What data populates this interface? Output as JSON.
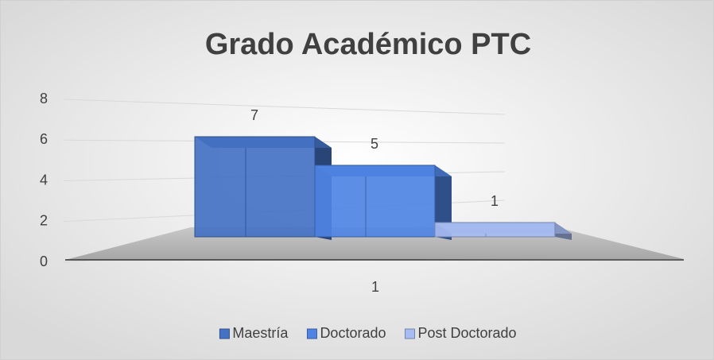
{
  "chart_data": {
    "type": "bar",
    "title": "Grado Académico PTC",
    "categories": [
      "1"
    ],
    "series": [
      {
        "name": "Maestría",
        "color": "#4472c4",
        "values": [
          7
        ]
      },
      {
        "name": "Doctorado",
        "color": "#4f84e4",
        "values": [
          5
        ]
      },
      {
        "name": "Post Doctorado",
        "color": "#a7bcf2",
        "values": [
          1
        ]
      }
    ],
    "ylim": [
      0,
      8
    ],
    "yticks": [
      0,
      2,
      4,
      6,
      8
    ],
    "grid": true,
    "legend": "bottom"
  }
}
